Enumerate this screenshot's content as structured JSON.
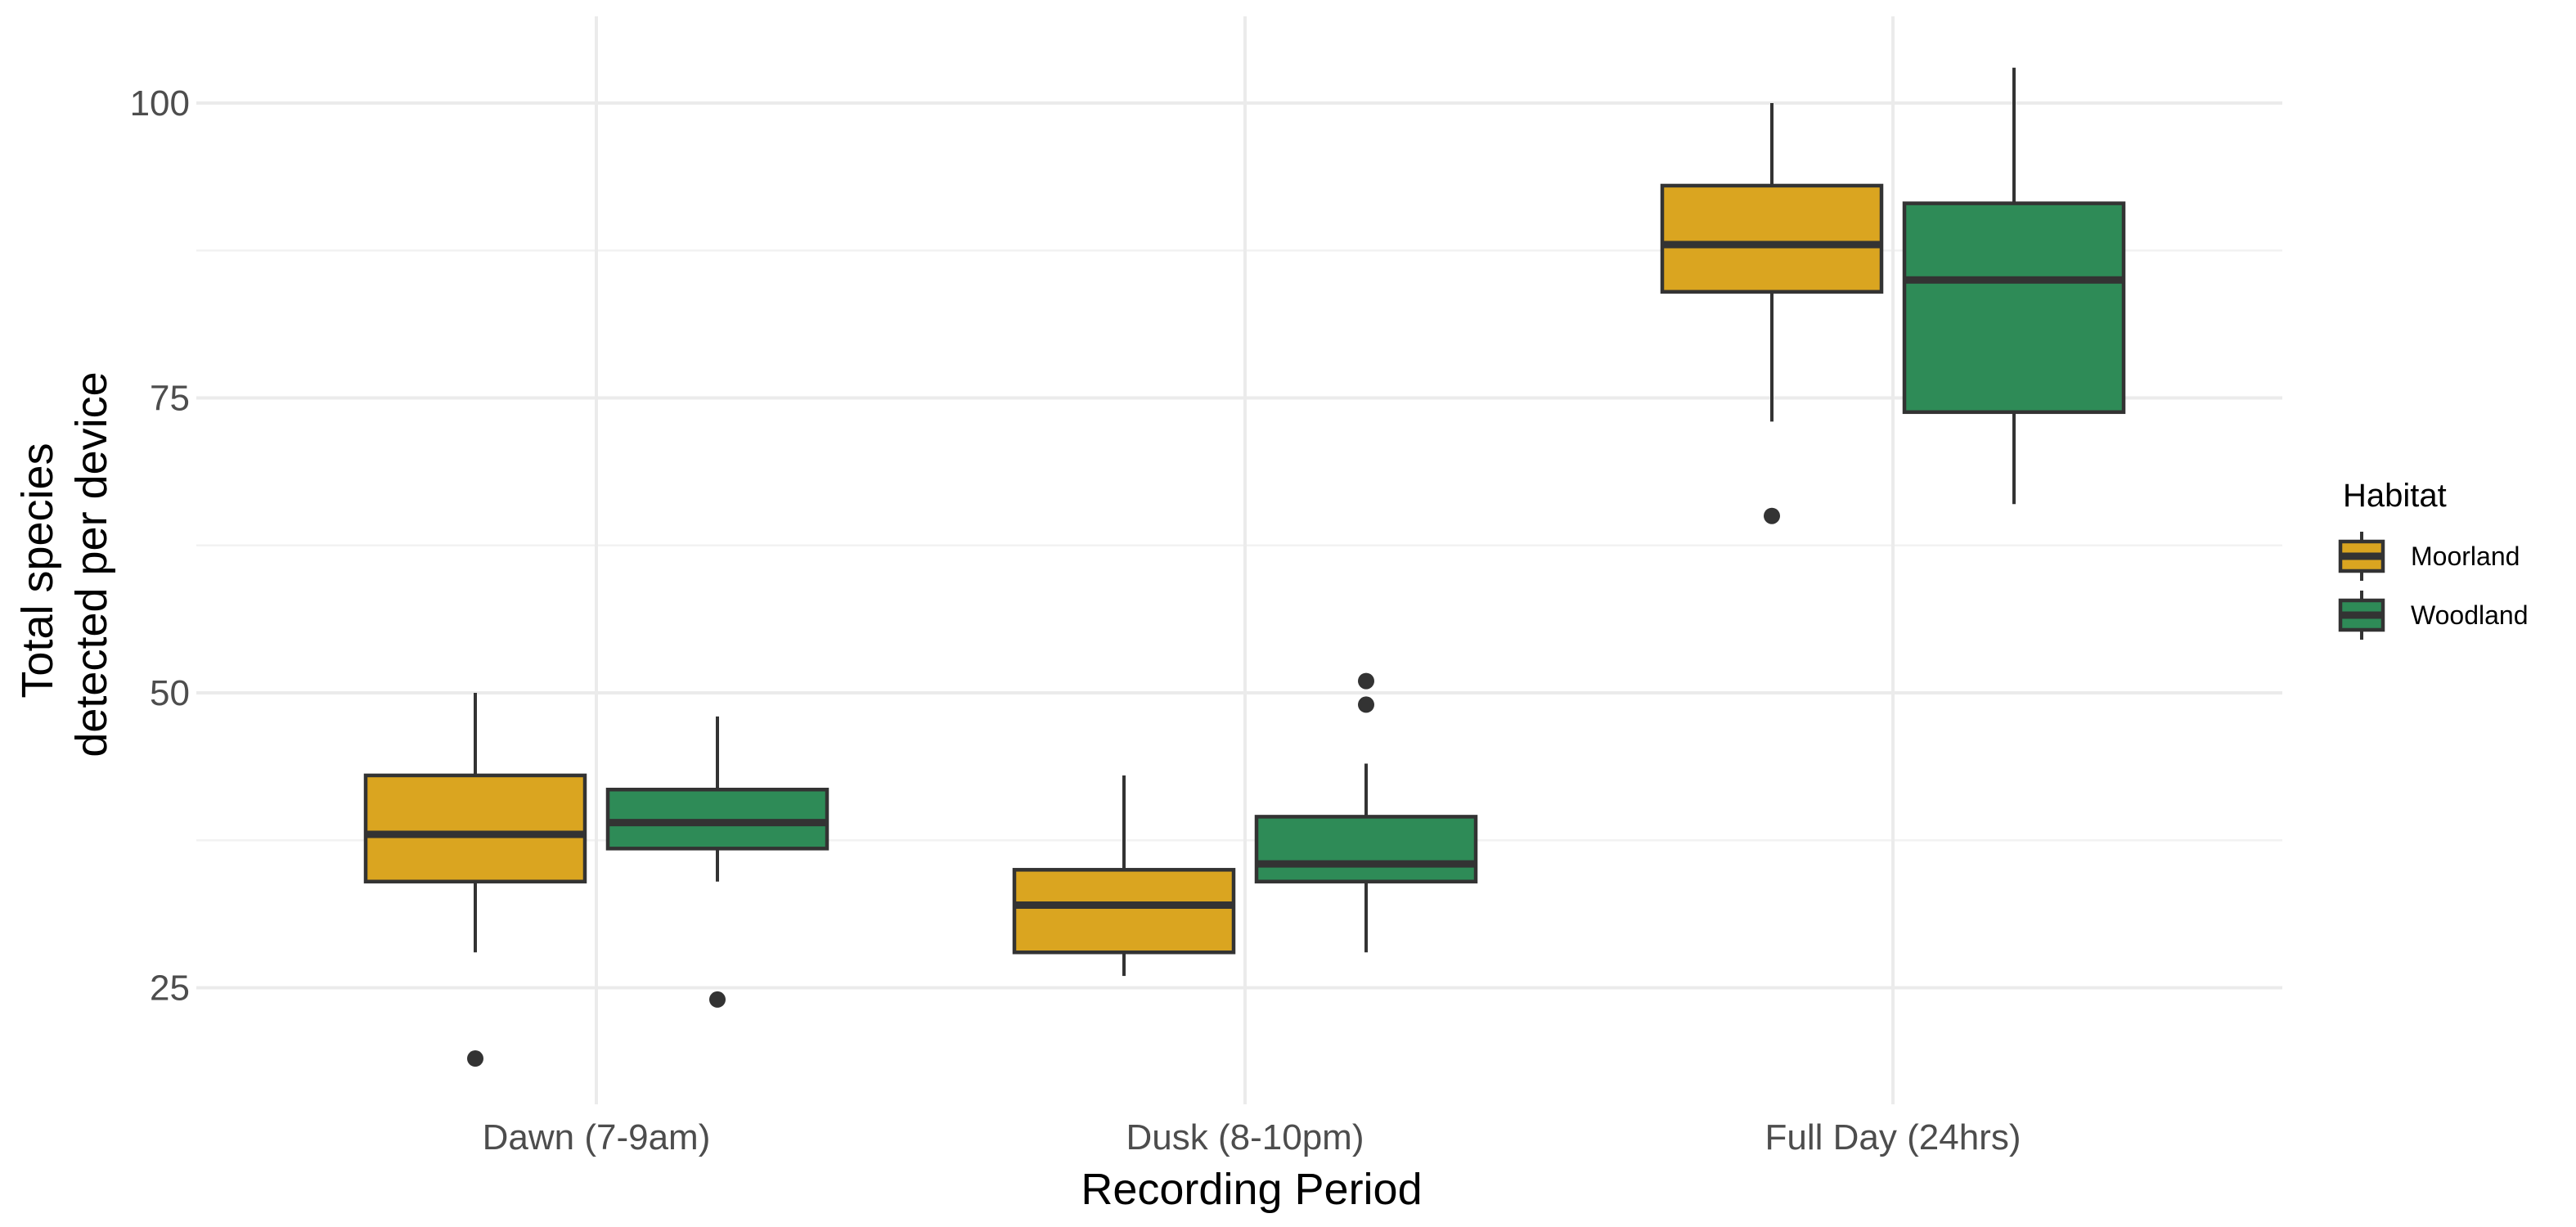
{
  "chart_data": {
    "type": "boxplot",
    "xlabel": "Recording Period",
    "ylabel": [
      "Total species",
      "detected per device"
    ],
    "categories": [
      "Dawn (7-9am)",
      "Dusk (8-10pm)",
      "Full Day (24hrs)"
    ],
    "ylim": [
      15,
      107
    ],
    "yticks": [
      25,
      50,
      75,
      100
    ],
    "grid": true,
    "legend": {
      "title": "Habitat",
      "position": "right"
    },
    "series": [
      {
        "name": "Moorland",
        "color": "#DAA520",
        "boxes": [
          {
            "whisker_low": 28,
            "q1": 34,
            "median": 38,
            "q3": 43,
            "whisker_high": 50,
            "outliers": [
              19
            ]
          },
          {
            "whisker_low": 26,
            "q1": 28,
            "median": 32,
            "q3": 35,
            "whisker_high": 43,
            "outliers": []
          },
          {
            "whisker_low": 73,
            "q1": 84,
            "median": 88,
            "q3": 93,
            "whisker_high": 100,
            "outliers": [
              65
            ]
          }
        ]
      },
      {
        "name": "Woodland",
        "color": "#2E8B57",
        "boxes": [
          {
            "whisker_low": 34,
            "q1": 36.8,
            "median": 39,
            "q3": 41.8,
            "whisker_high": 48,
            "outliers": [
              24
            ]
          },
          {
            "whisker_low": 28,
            "q1": 34,
            "median": 35.5,
            "q3": 39.5,
            "whisker_high": 44,
            "outliers": [
              49,
              51
            ]
          },
          {
            "whisker_low": 66,
            "q1": 73.8,
            "median": 85,
            "q3": 91.5,
            "whisker_high": 103,
            "outliers": []
          }
        ]
      }
    ]
  }
}
